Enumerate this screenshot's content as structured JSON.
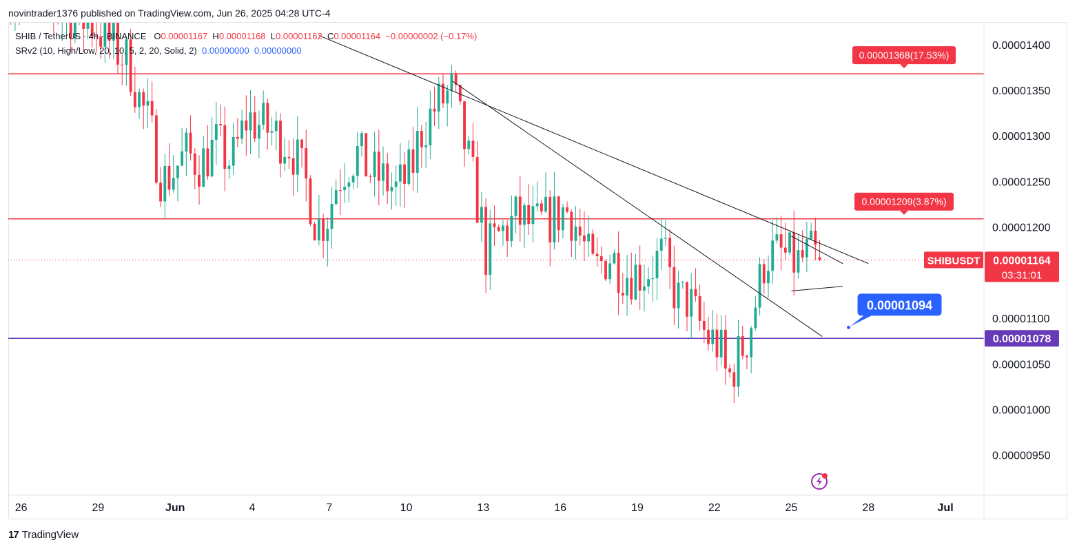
{
  "header": {
    "publisher_text": "novintrader1376 published on TradingView.com, Jun 26, 2025 04:28 UTC-4"
  },
  "legend": {
    "symbol": "SHIB / TetherUS · 4h · BINANCE",
    "o_label": "O",
    "o_value": "0.00001167",
    "h_label": "H",
    "h_value": "0.00001168",
    "l_label": "L",
    "l_value": "0.00001162",
    "c_label": "C",
    "c_value": "0.00001164",
    "change": "−0.00000002 (−0.17%)",
    "indicator": "SRv2 (10, High/Low, 20, 10, 5, 2, 20, Solid, 2)",
    "ind_value1": "0.00000000",
    "ind_value2": "0.00000000"
  },
  "footer": {
    "brand": "TradingView",
    "logo_text": "17"
  },
  "colors": {
    "up": "#22ab94",
    "down": "#f23645",
    "resistance": "#f23645",
    "support": "#673ab7",
    "callout": "#2962ff"
  },
  "chart_data": {
    "type": "candlestick",
    "symbol": "SHIBUSDT",
    "timeframe": "4h",
    "y_ticks": [
      1.4e-05,
      1.35e-05,
      1.3e-05,
      1.25e-05,
      1.2e-05,
      1.15e-05,
      1.1e-05,
      1.05e-05,
      1e-05,
      9.5e-06
    ],
    "y_tick_labels": [
      "0.00001400",
      "0.00001350",
      "0.00001300",
      "0.00001250",
      "0.00001200",
      "",
      "0.00001100",
      "0.00001050",
      "0.00001000",
      "0.00000950"
    ],
    "ylim": [
      9.06e-06,
      1.424e-05
    ],
    "x_ticks": [
      {
        "label": "26",
        "day": 26
      },
      {
        "label": "29",
        "day": 29
      },
      {
        "label": "Jun",
        "day": 32
      },
      {
        "label": "4",
        "day": 35
      },
      {
        "label": "7",
        "day": 38
      },
      {
        "label": "10",
        "day": 41
      },
      {
        "label": "13",
        "day": 44
      },
      {
        "label": "16",
        "day": 47
      },
      {
        "label": "19",
        "day": 50
      },
      {
        "label": "22",
        "day": 53
      },
      {
        "label": "25",
        "day": 56
      },
      {
        "label": "28",
        "day": 59
      },
      {
        "label": "Jul",
        "day": 62
      }
    ],
    "xlim": [
      25.5,
      63.5
    ],
    "anchors": [
      {
        "day": 26.0,
        "price": 1.46e-05
      },
      {
        "day": 28.2,
        "price": 1.43e-05
      },
      {
        "day": 28.9,
        "price": 1.42e-05
      },
      {
        "day": 29.7,
        "price": 1.395e-05
      },
      {
        "day": 30.2,
        "price": 1.38e-05
      },
      {
        "day": 30.6,
        "price": 1.34e-05
      },
      {
        "day": 31.0,
        "price": 1.31e-05
      },
      {
        "day": 31.5,
        "price": 1.25e-05
      },
      {
        "day": 31.9,
        "price": 1.26e-05
      },
      {
        "day": 32.4,
        "price": 1.28e-05
      },
      {
        "day": 33.0,
        "price": 1.27e-05
      },
      {
        "day": 33.6,
        "price": 1.29e-05
      },
      {
        "day": 34.2,
        "price": 1.27e-05
      },
      {
        "day": 34.8,
        "price": 1.32e-05
      },
      {
        "day": 35.4,
        "price": 1.31e-05
      },
      {
        "day": 36.0,
        "price": 1.3e-05
      },
      {
        "day": 36.5,
        "price": 1.29e-05
      },
      {
        "day": 37.2,
        "price": 1.24e-05
      },
      {
        "day": 37.5,
        "price": 1.2e-05
      },
      {
        "day": 37.9,
        "price": 1.21e-05
      },
      {
        "day": 38.3,
        "price": 1.25e-05
      },
      {
        "day": 38.7,
        "price": 1.27e-05
      },
      {
        "day": 39.1,
        "price": 1.28e-05
      },
      {
        "day": 39.6,
        "price": 1.26e-05
      },
      {
        "day": 40.2,
        "price": 1.25e-05
      },
      {
        "day": 40.6,
        "price": 1.24e-05
      },
      {
        "day": 41.2,
        "price": 1.26e-05
      },
      {
        "day": 41.5,
        "price": 1.3e-05
      },
      {
        "day": 42.1,
        "price": 1.33e-05
      },
      {
        "day": 42.8,
        "price": 1.35e-05
      },
      {
        "day": 43.2,
        "price": 1.3e-05
      },
      {
        "day": 43.6,
        "price": 1.25e-05
      },
      {
        "day": 43.9,
        "price": 1.21e-05
      },
      {
        "day": 44.1,
        "price": 1.17e-05
      },
      {
        "day": 44.6,
        "price": 1.19e-05
      },
      {
        "day": 45.3,
        "price": 1.21e-05
      },
      {
        "day": 46.0,
        "price": 1.2e-05
      },
      {
        "day": 46.7,
        "price": 1.21e-05
      },
      {
        "day": 47.2,
        "price": 1.22e-05
      },
      {
        "day": 47.5,
        "price": 1.21e-05
      },
      {
        "day": 47.9,
        "price": 1.18e-05
      },
      {
        "day": 48.3,
        "price": 1.15e-05
      },
      {
        "day": 48.9,
        "price": 1.17e-05
      },
      {
        "day": 49.5,
        "price": 1.15e-05
      },
      {
        "day": 50.3,
        "price": 1.15e-05
      },
      {
        "day": 51.0,
        "price": 1.17e-05
      },
      {
        "day": 51.3,
        "price": 1.14e-05
      },
      {
        "day": 51.6,
        "price": 1.12e-05
      },
      {
        "day": 52.0,
        "price": 1.12e-05
      },
      {
        "day": 52.3,
        "price": 1.1e-05
      },
      {
        "day": 52.7,
        "price": 1.08e-05
      },
      {
        "day": 53.2,
        "price": 1.07e-05
      },
      {
        "day": 53.5,
        "price": 1.03e-05
      },
      {
        "day": 53.8,
        "price": 1.05e-05
      },
      {
        "day": 54.3,
        "price": 1.08e-05
      },
      {
        "day": 54.7,
        "price": 1.13e-05
      },
      {
        "day": 55.0,
        "price": 1.17e-05
      },
      {
        "day": 55.6,
        "price": 1.17e-05
      },
      {
        "day": 56.2,
        "price": 1.16e-05
      },
      {
        "day": 56.7,
        "price": 1.17e-05
      },
      {
        "day": 57.1,
        "price": 1.164e-05
      }
    ],
    "last_price": 1.164e-05,
    "price_label": "0.00001164",
    "countdown": "03:31:01",
    "symbol_tag": "SHIBUSDT",
    "support_label": "0.00001078",
    "levels": [
      {
        "name": "resistance-1",
        "price": 1.368e-05,
        "label": "0.00001368(17.53%)",
        "color": "#f23645"
      },
      {
        "name": "resistance-2",
        "price": 1.209e-05,
        "label": "0.00001209(3.87%)",
        "color": "#f23645"
      },
      {
        "name": "support",
        "price": 1.078e-05,
        "color": "#673ab7"
      }
    ],
    "trendlines": [
      {
        "name": "trendline-upper",
        "from": {
          "day": 37.6,
          "price": 1.41e-05
        },
        "to": {
          "day": 59.0,
          "price": 1.16e-05
        }
      },
      {
        "name": "trendline-lower",
        "from": {
          "day": 42.8,
          "price": 1.36e-05
        },
        "to": {
          "day": 57.2,
          "price": 1.08e-05
        }
      }
    ],
    "triangle": {
      "upper": {
        "from": {
          "day": 56.0,
          "price": 1.19e-05
        },
        "to": {
          "day": 58.0,
          "price": 1.16e-05
        }
      },
      "lower": {
        "from": {
          "day": 56.0,
          "price": 1.13e-05
        },
        "to": {
          "day": 58.0,
          "price": 1.135e-05
        }
      }
    },
    "callout": {
      "label": "0.00001094",
      "day": 58.2,
      "price": 1.09e-05
    }
  }
}
